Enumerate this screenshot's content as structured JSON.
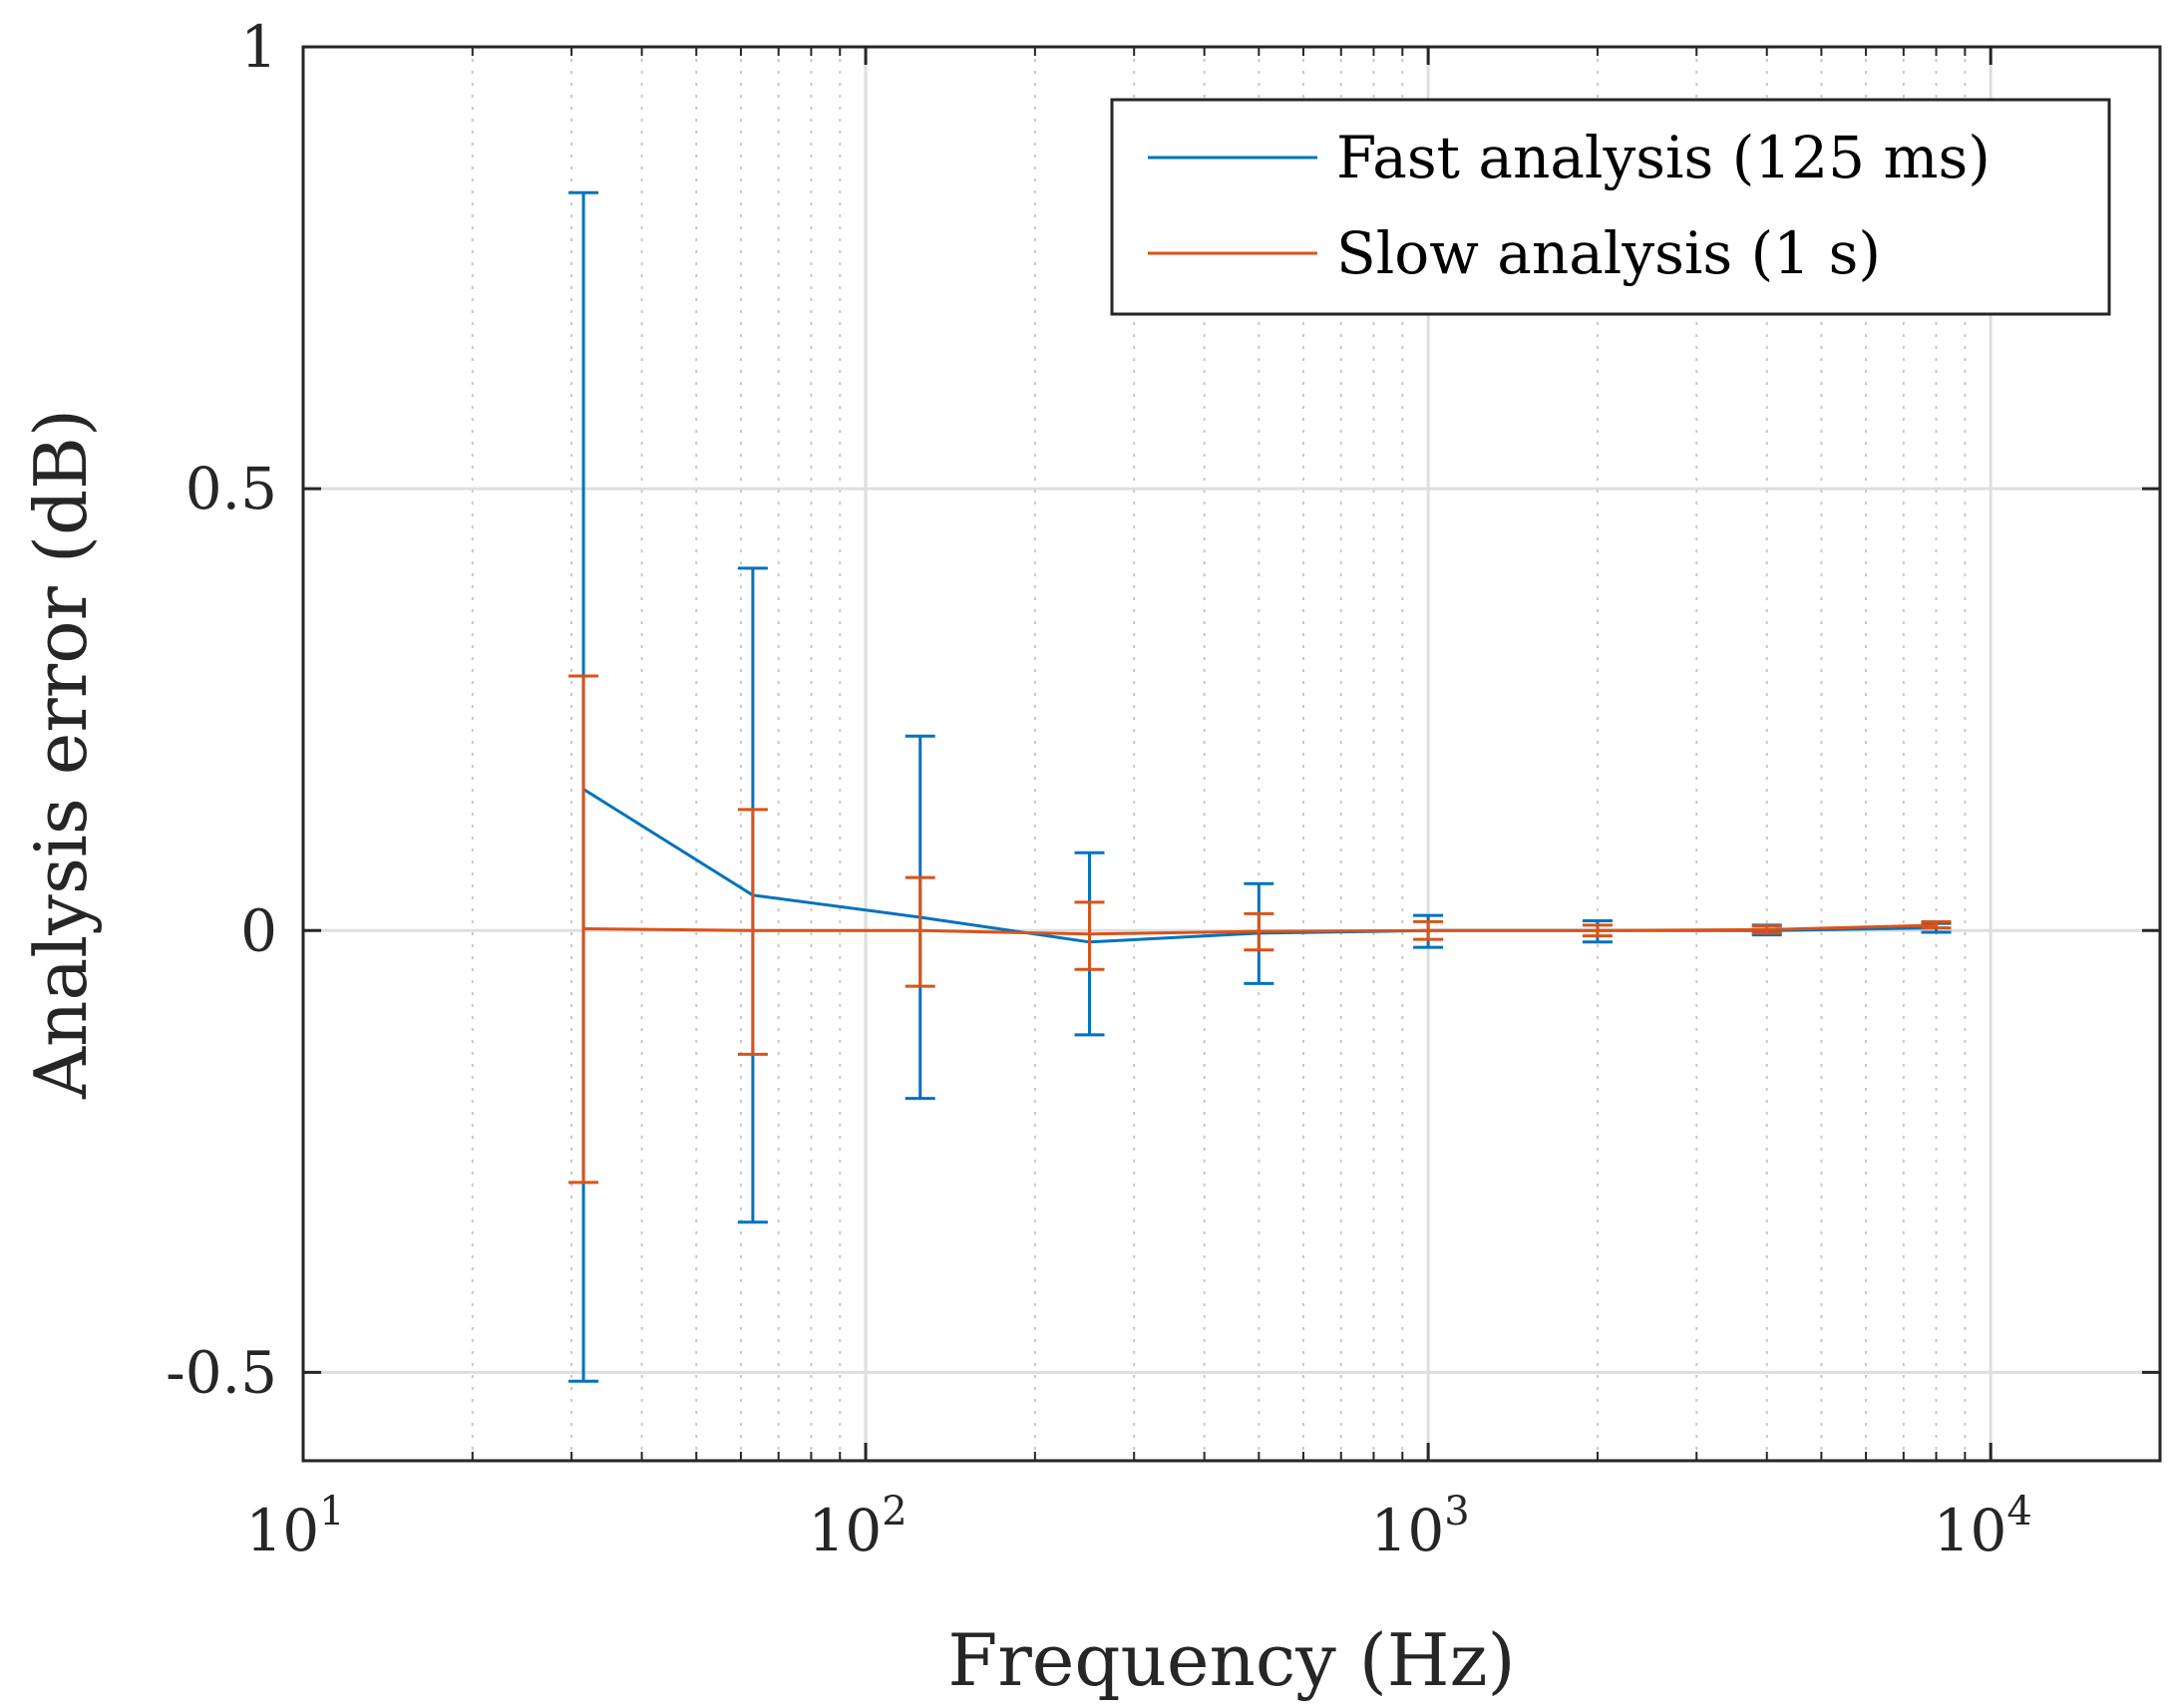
{
  "chart_data": {
    "type": "line",
    "title": "",
    "xlabel": "Frequency (Hz)",
    "ylabel": "Analysis error (dB)",
    "xscale": "log",
    "xlim": [
      10,
      20000
    ],
    "ylim": [
      -0.6,
      1
    ],
    "yticks": [
      -0.5,
      0,
      0.5,
      1
    ],
    "ytick_labels": [
      "-0.5",
      "0",
      "0.5",
      "1"
    ],
    "xticks": [
      {
        "value": 10,
        "base": "10",
        "exp": "1"
      },
      {
        "value": 100,
        "base": "10",
        "exp": "2"
      },
      {
        "value": 1000,
        "base": "10",
        "exp": "3"
      },
      {
        "value": 10000,
        "base": "10",
        "exp": "4"
      }
    ],
    "grid": true,
    "minor_grid": true,
    "legend_position": "top-right",
    "colors": {
      "grid": "#dedede",
      "minor_grid": "#c8c8c8",
      "axis": "#262626"
    },
    "series": [
      {
        "name": "Fast analysis (125 ms)",
        "color": "#0072bd",
        "x": [
          31.5,
          63,
          125,
          250,
          500,
          1000,
          2000,
          4000,
          8000
        ],
        "y": [
          0.16,
          0.04,
          0.015,
          -0.013,
          -0.003,
          0.0,
          0.0,
          0.0,
          0.003
        ],
        "err_low": [
          -0.51,
          -0.33,
          -0.19,
          -0.118,
          -0.06,
          -0.019,
          -0.013,
          -0.005,
          -0.002
        ],
        "err_high": [
          0.835,
          0.41,
          0.22,
          0.088,
          0.053,
          0.017,
          0.011,
          0.006,
          0.008
        ]
      },
      {
        "name": "Slow analysis (1 s)",
        "color": "#d95319",
        "x": [
          31.5,
          63,
          125,
          250,
          500,
          1000,
          2000,
          4000,
          8000
        ],
        "y": [
          0.002,
          0.0,
          0.0,
          -0.004,
          -0.001,
          0.0,
          0.0,
          0.001,
          0.006
        ],
        "err_low": [
          -0.285,
          -0.14,
          -0.063,
          -0.044,
          -0.022,
          -0.01,
          -0.006,
          -0.003,
          0.003
        ],
        "err_high": [
          0.288,
          0.137,
          0.06,
          0.032,
          0.019,
          0.01,
          0.006,
          0.005,
          0.01
        ]
      }
    ]
  }
}
